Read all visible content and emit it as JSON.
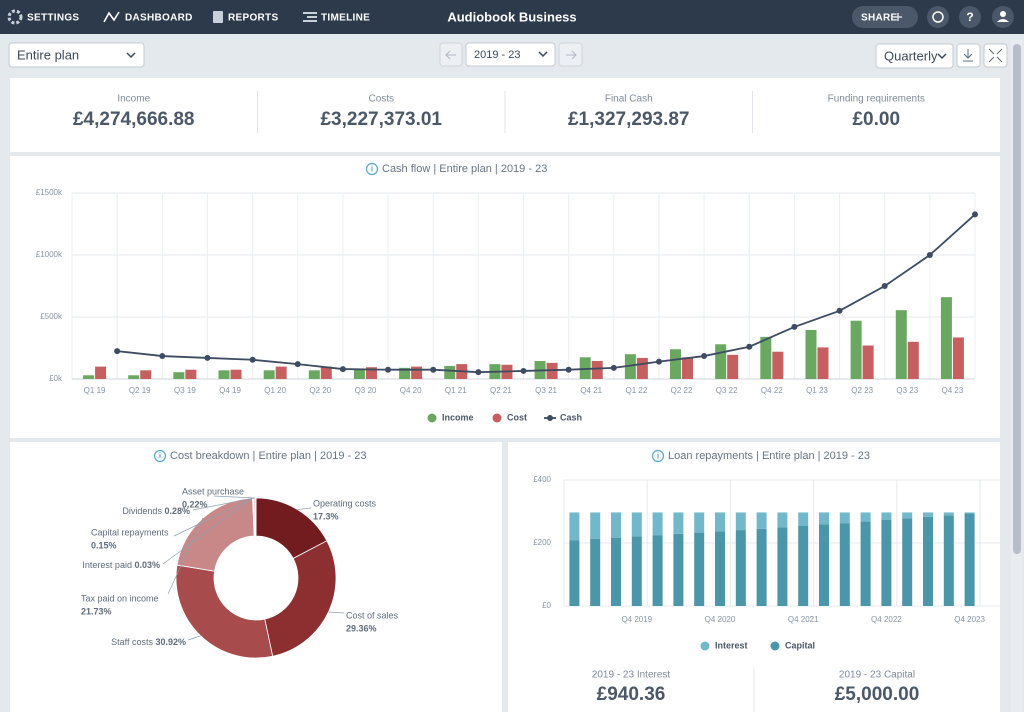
{
  "nav": {
    "items": [
      "SETTINGS",
      "DASHBOARD",
      "REPORTS",
      "TIMELINE"
    ],
    "title": "Audiobook Business",
    "share": "SHARE"
  },
  "toolbar": {
    "scope": "Entire plan",
    "period": "2019 - 23",
    "interval": "Quarterly"
  },
  "kpis": [
    {
      "label": "Income",
      "value": "£4,274,666.88"
    },
    {
      "label": "Costs",
      "value": "£3,227,373.01"
    },
    {
      "label": "Final Cash",
      "value": "£1,327,293.87"
    },
    {
      "label": "Funding requirements",
      "value": "£0.00"
    }
  ],
  "chart_data": [
    {
      "type": "bar",
      "title": "Cash flow | Entire plan | 2019 - 23",
      "categories": [
        "Q1 19",
        "Q2 19",
        "Q3 19",
        "Q4 19",
        "Q1 20",
        "Q2 20",
        "Q3 20",
        "Q4 20",
        "Q1 21",
        "Q2 21",
        "Q3 21",
        "Q4 21",
        "Q1 22",
        "Q2 22",
        "Q3 22",
        "Q4 22",
        "Q1 23",
        "Q2 23",
        "Q3 23",
        "Q4 23"
      ],
      "series": [
        {
          "name": "Income",
          "type": "bar",
          "color": "#6aa861",
          "values": [
            30000,
            30000,
            55000,
            70000,
            70000,
            70000,
            80000,
            90000,
            105000,
            120000,
            145000,
            175000,
            200000,
            240000,
            280000,
            340000,
            395000,
            470000,
            555000,
            660000
          ]
        },
        {
          "name": "Cost",
          "type": "bar",
          "color": "#c66060",
          "values": [
            100000,
            70000,
            75000,
            75000,
            100000,
            100000,
            95000,
            100000,
            120000,
            115000,
            130000,
            145000,
            170000,
            175000,
            195000,
            220000,
            255000,
            270000,
            300000,
            335000
          ]
        },
        {
          "name": "Cash",
          "type": "line",
          "color": "#3d4c62",
          "values": [
            225000,
            185000,
            170000,
            155000,
            120000,
            80000,
            75000,
            75000,
            55000,
            65000,
            75000,
            90000,
            140000,
            185000,
            260000,
            420000,
            550000,
            750000,
            1000000,
            1327294
          ]
        }
      ],
      "ylim": [
        0,
        1500000
      ],
      "yticks": [
        {
          "value": 0,
          "label": "£0k"
        },
        {
          "value": 500000,
          "label": "£500k"
        },
        {
          "value": 1000000,
          "label": "£1000k"
        },
        {
          "value": 1500000,
          "label": "£1500k"
        }
      ],
      "grid": true,
      "legend": "bottom"
    },
    {
      "type": "pie",
      "title": "Cost breakdown | Entire plan | 2019 - 23",
      "categories": [
        "Operating costs",
        "Cost of sales",
        "Staff costs",
        "Tax paid on income",
        "Interest paid",
        "Capital repayments",
        "Dividends",
        "Asset purchase"
      ],
      "values": [
        17.3,
        29.36,
        30.92,
        21.73,
        0.03,
        0.15,
        0.28,
        0.22
      ],
      "value_labels": [
        "17.3%",
        "29.36%",
        "30.92%",
        "21.73%",
        "0.03%",
        "0.15%",
        "0.28%",
        "0.22%"
      ],
      "colors": [
        "#731c20",
        "#8d2f31",
        "#a84b4c",
        "#c98888",
        "#d7a2a2",
        "#d9a6a6",
        "#dcacac",
        "#e0b4b4"
      ],
      "donut": true
    },
    {
      "type": "bar",
      "stacked": true,
      "title": "Loan repayments | Entire plan | 2019 - 23",
      "categories": [
        null,
        null,
        null,
        "Q4 2019",
        null,
        null,
        null,
        "Q4 2020",
        null,
        null,
        null,
        "Q4 2021",
        null,
        null,
        null,
        "Q4 2022",
        null,
        null,
        null,
        "Q4 2023"
      ],
      "series": [
        {
          "name": "Interest",
          "color": "#72b8ca",
          "values": [
            88,
            84,
            80,
            76,
            72,
            68,
            64,
            60,
            56,
            52,
            47,
            43,
            38,
            34,
            29,
            24,
            19,
            14,
            9,
            3
          ]
        },
        {
          "name": "Capital",
          "color": "#4b96a9",
          "values": [
            209,
            213,
            217,
            221,
            225,
            229,
            233,
            237,
            241,
            245,
            250,
            254,
            259,
            263,
            268,
            273,
            278,
            283,
            288,
            294
          ]
        }
      ],
      "ylim": [
        0,
        400
      ],
      "yticks": [
        {
          "value": 0,
          "label": "£0"
        },
        {
          "value": 200,
          "label": "£200"
        },
        {
          "value": 400,
          "label": "£400"
        }
      ],
      "grid": true,
      "legend": "bottom"
    }
  ],
  "loan_summary": [
    {
      "label": "2019 - 23 Interest",
      "value": "£940.36"
    },
    {
      "label": "2019 - 23 Capital",
      "value": "£5,000.00"
    }
  ]
}
